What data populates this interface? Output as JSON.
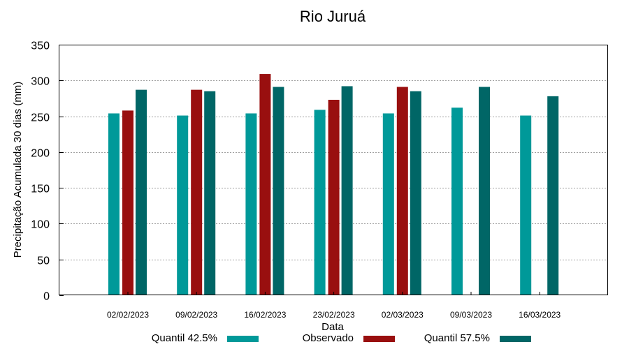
{
  "chart_data": {
    "type": "bar",
    "title": "Rio Juruá",
    "xlabel": "Data",
    "ylabel": "Precipitação Acumulada 30 dias (mm)",
    "ylim": [
      0,
      350
    ],
    "yticks": [
      0,
      50,
      100,
      150,
      200,
      250,
      300,
      350
    ],
    "grid": true,
    "legend_position": "bottom",
    "categories": [
      "02/02/2023",
      "09/02/2023",
      "16/02/2023",
      "23/02/2023",
      "02/03/2023",
      "09/03/2023",
      "16/03/2023"
    ],
    "series": [
      {
        "name": "Quantil 42.5%",
        "color": "#009999",
        "values": [
          254,
          251,
          254,
          259,
          254,
          262,
          251
        ]
      },
      {
        "name": "Observado",
        "color": "#990f0f",
        "values": [
          258,
          287,
          309,
          273,
          291,
          null,
          null
        ]
      },
      {
        "name": "Quantil 57.5%",
        "color": "#006666",
        "values": [
          287,
          285,
          291,
          292,
          285,
          291,
          278
        ]
      }
    ]
  }
}
